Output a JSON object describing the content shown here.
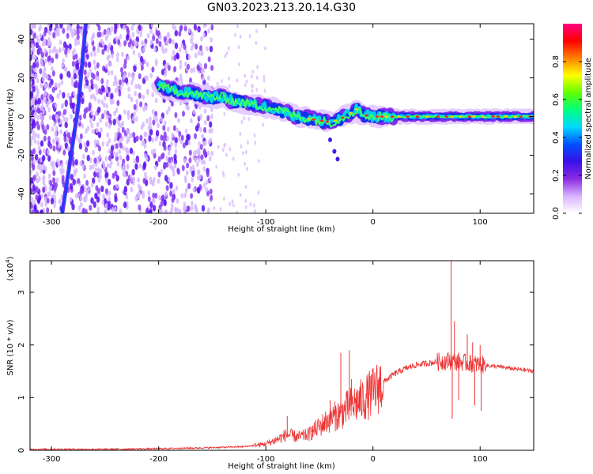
{
  "title": "GN03.2023.213.20.14.G30",
  "chart_data": [
    {
      "type": "heatmap",
      "panel": "top",
      "xlabel": "Height of straight line (km)",
      "ylabel": "Frequency (Hz)",
      "xlim": [
        -320,
        150
      ],
      "ylim": [
        -50,
        48
      ],
      "xticks": [
        -300,
        -200,
        -100,
        0,
        100
      ],
      "yticks": [
        -40,
        -20,
        0,
        20,
        40
      ],
      "colorbar": {
        "label": "Normalized spectral amplitude",
        "range": [
          0,
          1
        ],
        "ticks": [
          "0.0",
          "0.2",
          "0.4",
          "0.6",
          "0.8"
        ],
        "colormap": [
          "#ffffff",
          "#d9b3ff",
          "#8a2be2",
          "#3a10e8",
          "#0050ff",
          "#00d8ff",
          "#00ff80",
          "#60ff00",
          "#ffff00",
          "#ff8000",
          "#ff0000",
          "#ff0080"
        ]
      },
      "ridge": {
        "x": [
          -200,
          -190,
          -180,
          -170,
          -160,
          -150,
          -140,
          -130,
          -120,
          -110,
          -100,
          -90,
          -80,
          -70,
          -60,
          -50,
          -40,
          -30,
          -20,
          -15,
          -10,
          0,
          20,
          40,
          60,
          80,
          100,
          120,
          150
        ],
        "y": [
          16,
          14,
          13,
          12,
          11,
          10,
          10,
          8,
          7,
          6,
          5,
          4,
          2,
          0,
          -1,
          -2,
          -3,
          -1,
          2,
          4,
          1,
          0,
          0,
          0,
          0,
          0,
          0,
          0,
          0
        ]
      },
      "streak": {
        "x": [
          -290,
          -275,
          -268
        ],
        "y": [
          -50,
          5,
          48
        ]
      },
      "scatter_region": {
        "x_from": -320,
        "x_to": -150,
        "sparse_to": -100
      }
    },
    {
      "type": "line",
      "panel": "bottom",
      "xlabel": "Height of straight line (km)",
      "ylabel": "SNR (10 * v/v)",
      "yscale_label": "(x10",
      "yscale_exp": "4",
      "yscale_close": ")",
      "xlim": [
        -320,
        150
      ],
      "ylim": [
        0,
        3.6
      ],
      "xticks": [
        -300,
        -200,
        -100,
        0,
        100
      ],
      "yticks": [
        0,
        1,
        2,
        3
      ],
      "color": "#ee3333",
      "envelope": {
        "x": [
          -320,
          -250,
          -200,
          -150,
          -120,
          -100,
          -90,
          -80,
          -70,
          -60,
          -50,
          -40,
          -30,
          -20,
          -10,
          0,
          10,
          20,
          30,
          40,
          50,
          60,
          70,
          80,
          90,
          100,
          110,
          120,
          130,
          140,
          150
        ],
        "y": [
          0.02,
          0.02,
          0.03,
          0.05,
          0.07,
          0.12,
          0.2,
          0.3,
          0.25,
          0.3,
          0.45,
          0.6,
          0.7,
          0.85,
          0.95,
          1.1,
          1.3,
          1.45,
          1.55,
          1.62,
          1.65,
          1.68,
          1.7,
          1.68,
          1.65,
          1.63,
          1.6,
          1.58,
          1.55,
          1.53,
          1.5
        ]
      },
      "spikes": [
        {
          "x": -80,
          "y": 0.65
        },
        {
          "x": -57,
          "y": 0.45
        },
        {
          "x": -40,
          "y": 0.95
        },
        {
          "x": -30,
          "y": 1.85
        },
        {
          "x": -22,
          "y": 1.9
        },
        {
          "x": -20,
          "y": 1.35
        },
        {
          "x": 73,
          "y": 3.6
        },
        {
          "x": 74,
          "y": 0.6
        },
        {
          "x": 76,
          "y": 2.45
        },
        {
          "x": 80,
          "y": 0.95
        },
        {
          "x": 88,
          "y": 2.2
        },
        {
          "x": 93,
          "y": 2.05
        },
        {
          "x": 95,
          "y": 0.85
        },
        {
          "x": 100,
          "y": 2.0
        },
        {
          "x": 101,
          "y": 0.75
        }
      ]
    }
  ]
}
